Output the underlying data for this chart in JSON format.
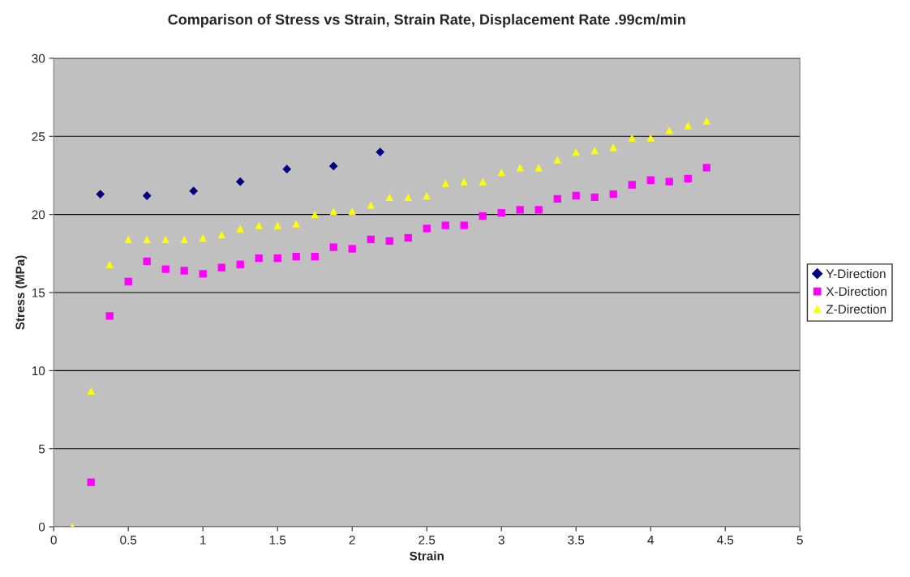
{
  "chart_data": {
    "type": "scatter",
    "title": "Comparison of Stress vs Strain, Strain Rate, Displacement Rate .99cm/min",
    "xlabel": "Strain",
    "ylabel": "Stress (MPa)",
    "xlim": [
      0,
      5
    ],
    "xticks": [
      0,
      0.5,
      1,
      1.5,
      2,
      2.5,
      3,
      3.5,
      4,
      4.5,
      5
    ],
    "ylim": [
      0,
      30
    ],
    "yticks": [
      0,
      5,
      10,
      15,
      20,
      25,
      30
    ],
    "grid": "y",
    "legend": "right",
    "series": [
      {
        "name": "Y-Direction",
        "color": "#000080",
        "marker": "diamond",
        "x": [
          0.3125,
          0.625,
          0.9375,
          1.25,
          1.5625,
          1.875,
          2.1875
        ],
        "values": [
          21.3,
          21.2,
          21.5,
          22.1,
          22.9,
          23.1,
          24.0
        ]
      },
      {
        "name": "X-Direction",
        "color": "#ff00ff",
        "marker": "square",
        "x": [
          0.25,
          0.375,
          0.5,
          0.625,
          0.75,
          0.875,
          1.0,
          1.125,
          1.25,
          1.375,
          1.5,
          1.625,
          1.75,
          1.875,
          2.0,
          2.125,
          2.25,
          2.375,
          2.5,
          2.625,
          2.75,
          2.875,
          3.0,
          3.125,
          3.25,
          3.375,
          3.5,
          3.625,
          3.75,
          3.875,
          4.0,
          4.125,
          4.25,
          4.375
        ],
        "values": [
          2.85,
          13.5,
          15.7,
          17.0,
          16.5,
          16.4,
          16.2,
          16.6,
          16.8,
          17.2,
          17.2,
          17.3,
          17.3,
          17.9,
          17.8,
          18.4,
          18.3,
          18.5,
          19.1,
          19.3,
          19.3,
          19.9,
          20.1,
          20.3,
          20.3,
          21.0,
          21.2,
          21.1,
          21.3,
          21.9,
          22.2,
          22.1,
          22.3,
          23.0
        ]
      },
      {
        "name": "Z-Direction",
        "color": "#ffff00",
        "marker": "triangle",
        "x": [
          0.125,
          0.25,
          0.375,
          0.5,
          0.625,
          0.75,
          0.875,
          1.0,
          1.125,
          1.25,
          1.375,
          1.5,
          1.625,
          1.75,
          1.875,
          2.0,
          2.125,
          2.25,
          2.375,
          2.5,
          2.625,
          2.75,
          2.875,
          3.0,
          3.125,
          3.25,
          3.375,
          3.5,
          3.625,
          3.75,
          3.875,
          4.0,
          4.125,
          4.25,
          4.375
        ],
        "values": [
          0.0,
          8.7,
          16.8,
          18.4,
          18.4,
          18.4,
          18.4,
          18.5,
          18.7,
          19.1,
          19.3,
          19.3,
          19.4,
          20.0,
          20.2,
          20.2,
          20.6,
          21.1,
          21.1,
          21.2,
          22.0,
          22.1,
          22.1,
          22.7,
          23.0,
          23.0,
          23.5,
          24.0,
          24.1,
          24.3,
          24.9,
          24.9,
          25.4,
          25.7,
          26.0
        ]
      }
    ]
  }
}
